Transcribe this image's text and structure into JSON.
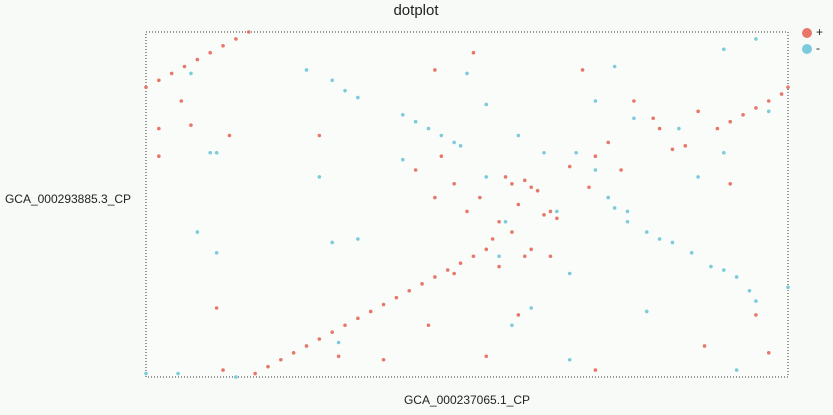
{
  "chart_data": {
    "type": "scatter",
    "title": "dotplot",
    "x_label": "GCA_000237065.1_CP",
    "y_label": "GCA_000293885.3_CP",
    "xlim": [
      0,
      100
    ],
    "ylim": [
      0,
      100
    ],
    "legend": "top-right",
    "series": [
      {
        "name": "+",
        "color": "#e8776a",
        "x": [
          0,
          2,
          4,
          6,
          8,
          10,
          12,
          14,
          16,
          17,
          19,
          21,
          23,
          25,
          27,
          29,
          31,
          33,
          35,
          37,
          39,
          41,
          43,
          45,
          47,
          49,
          51,
          53,
          89,
          91,
          93,
          95,
          97,
          99,
          100,
          57,
          59,
          60,
          61,
          56,
          58,
          62,
          63,
          55,
          50,
          52,
          57,
          54,
          60,
          66,
          70,
          74,
          69,
          72,
          80,
          82,
          84,
          63,
          55,
          48,
          46,
          5.5,
          2,
          2,
          7,
          13,
          27,
          11,
          12,
          30,
          53,
          58,
          70,
          91,
          95,
          97,
          87,
          68,
          76,
          45,
          51,
          59,
          64,
          37,
          44,
          79,
          86,
          48,
          42,
          45
        ],
        "values": [
          84,
          86,
          88,
          90,
          92,
          94,
          96,
          98,
          100,
          1,
          3,
          5,
          7,
          9,
          11,
          13,
          15,
          17,
          19,
          21,
          23,
          25,
          27,
          29,
          31,
          33,
          35,
          37,
          72,
          74,
          76,
          78,
          80,
          82,
          84,
          56,
          57,
          55,
          54,
          58,
          50,
          47,
          48,
          45,
          48,
          52,
          42,
          40,
          37,
          61,
          64,
          60,
          55,
          68,
          72,
          66,
          67,
          35,
          32,
          56,
          64,
          80,
          72,
          64,
          73,
          70,
          70,
          20,
          2,
          6,
          6,
          18,
          2,
          56,
          18,
          7,
          9,
          89,
          80,
          89,
          94,
          35,
          46,
          5,
          15,
          75,
          77,
          30,
          60,
          52
        ]
      },
      {
        "name": "-",
        "color": "#7ccbdc",
        "x": [
          29,
          31,
          33,
          40,
          42,
          44,
          46,
          48,
          49,
          67,
          70,
          72,
          75,
          78,
          80,
          82,
          85,
          88,
          90,
          92,
          94,
          95,
          7,
          10,
          11,
          0,
          5,
          14,
          27,
          30,
          8,
          11,
          25,
          29,
          33,
          40,
          50,
          53,
          57,
          58,
          66,
          73,
          76,
          90,
          95,
          97,
          100,
          60,
          66,
          83,
          86,
          90,
          73,
          62,
          64,
          56,
          55,
          78,
          92,
          70,
          75,
          53
        ],
        "values": [
          86,
          83,
          81,
          76,
          74,
          72,
          70,
          68,
          67,
          65,
          60,
          52,
          48,
          42,
          40,
          39,
          36,
          32,
          31,
          29,
          25,
          22,
          88,
          65,
          65,
          1,
          1,
          0,
          58,
          10,
          42,
          36,
          89,
          39,
          40,
          63,
          88,
          79,
          15,
          70,
          30,
          90,
          75,
          95,
          98,
          77,
          26,
          20,
          5,
          72,
          58,
          65,
          49,
          65,
          48,
          45,
          35,
          19,
          2,
          80,
          45,
          58
        ]
      }
    ]
  }
}
